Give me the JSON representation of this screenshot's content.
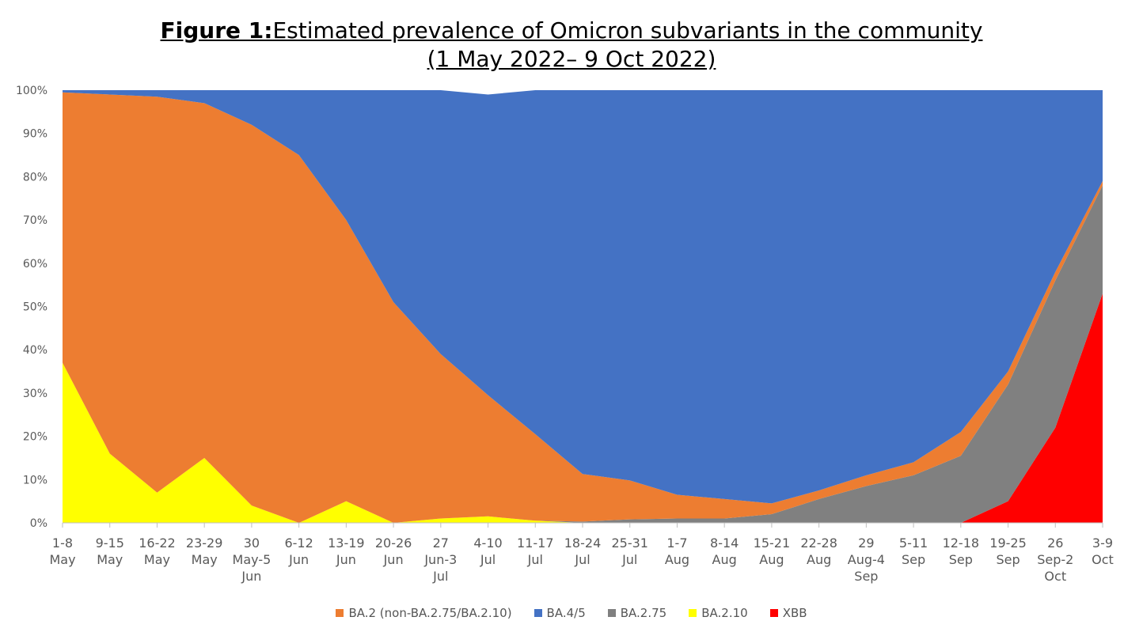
{
  "title": {
    "prefix": "Figure 1:",
    "text": "Estimated prevalence of Omicron subvariants in the community",
    "subtitle": "(1 May 2022– 9 Oct 2022)"
  },
  "chart_data": {
    "type": "area",
    "stacked": true,
    "title": "Figure 1: Estimated prevalence of Omicron subvariants in the community",
    "subtitle": "(1 May 2022– 9 Oct 2022)",
    "xlabel": "",
    "ylabel": "",
    "ylim": [
      0,
      100
    ],
    "yticks": [
      "0%",
      "10%",
      "20%",
      "30%",
      "40%",
      "50%",
      "60%",
      "70%",
      "80%",
      "90%",
      "100%"
    ],
    "grid": false,
    "legend_position": "bottom",
    "categories": [
      [
        "1-8",
        "May"
      ],
      [
        "9-15",
        "May"
      ],
      [
        "16-22",
        "May"
      ],
      [
        "23-29",
        "May"
      ],
      [
        "30",
        "May-5",
        "Jun"
      ],
      [
        "6-12",
        "Jun"
      ],
      [
        "13-19",
        "Jun"
      ],
      [
        "20-26",
        "Jun"
      ],
      [
        "27",
        "Jun-3",
        "Jul"
      ],
      [
        "4-10",
        "Jul"
      ],
      [
        "11-17",
        "Jul"
      ],
      [
        "18-24",
        "Jul"
      ],
      [
        "25-31",
        "Jul"
      ],
      [
        "1-7",
        "Aug"
      ],
      [
        "8-14",
        "Aug"
      ],
      [
        "15-21",
        "Aug"
      ],
      [
        "22-28",
        "Aug"
      ],
      [
        "29",
        "Aug-4",
        "Sep"
      ],
      [
        "5-11",
        "Sep"
      ],
      [
        "12-18",
        "Sep"
      ],
      [
        "19-25",
        "Sep"
      ],
      [
        "26",
        "Sep-2",
        "Oct"
      ],
      [
        "3-9",
        "Oct"
      ]
    ],
    "series": [
      {
        "name": "XBB",
        "color": "#ff0000",
        "values": [
          0,
          0,
          0,
          0,
          0,
          0,
          0,
          0,
          0,
          0,
          0,
          0,
          0,
          0,
          0,
          0,
          0,
          0,
          0,
          0,
          5,
          22,
          53
        ]
      },
      {
        "name": "BA.2.10",
        "color": "#ffff00",
        "values": [
          37,
          16,
          7,
          15,
          4,
          0,
          5,
          0,
          1,
          1.5,
          0.5,
          0,
          0,
          0,
          0,
          0,
          0,
          0,
          0,
          0,
          0,
          0,
          0
        ]
      },
      {
        "name": "BA.2.75",
        "color": "#808080",
        "values": [
          0,
          0,
          0,
          0,
          0,
          0,
          0,
          0,
          0,
          0,
          0,
          0.3,
          0.8,
          1,
          1,
          2,
          5.5,
          8.5,
          11,
          15.5,
          27,
          34,
          25
        ]
      },
      {
        "name": "BA.2 (non-BA.2.75/BA.2.10)",
        "color": "#ed7d31",
        "values": [
          62.5,
          83,
          91.5,
          82,
          88,
          85,
          65,
          51,
          38,
          28,
          20,
          11,
          9,
          5.5,
          4.5,
          2.5,
          2,
          2.5,
          3,
          5.5,
          3,
          2,
          1
        ]
      },
      {
        "name": "BA.4/5",
        "color": "#4472c4",
        "values": [
          0.5,
          1,
          1.5,
          3,
          8,
          15,
          30,
          49,
          61,
          69.5,
          79.5,
          88.7,
          90.2,
          93.5,
          94.5,
          95.5,
          92.5,
          89,
          86,
          79,
          65,
          42,
          21
        ]
      }
    ],
    "legend": [
      {
        "name": "BA.2 (non-BA.2.75/BA.2.10)",
        "color": "#ed7d31"
      },
      {
        "name": "BA.4/5",
        "color": "#4472c4"
      },
      {
        "name": "BA.2.75",
        "color": "#808080"
      },
      {
        "name": "BA.2.10",
        "color": "#ffff00"
      },
      {
        "name": "XBB",
        "color": "#ff0000"
      }
    ]
  }
}
